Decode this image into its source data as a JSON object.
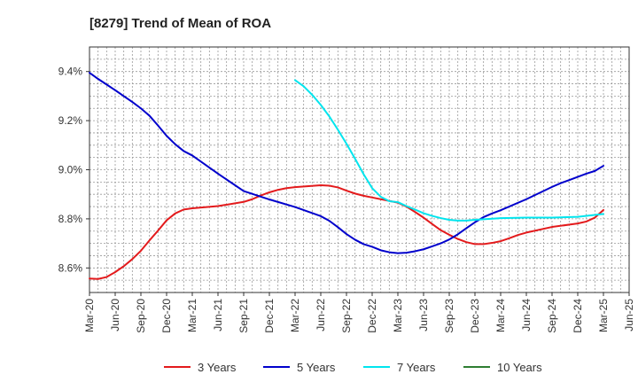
{
  "chart_data": {
    "type": "line",
    "title": "[8279]  Trend of Mean of ROA",
    "xlabel": "",
    "ylabel": "",
    "x_ticks": [
      "Mar-20",
      "Jun-20",
      "Sep-20",
      "Dec-20",
      "Mar-21",
      "Jun-21",
      "Sep-21",
      "Dec-21",
      "Mar-22",
      "Jun-22",
      "Sep-22",
      "Dec-22",
      "Mar-23",
      "Jun-23",
      "Sep-23",
      "Dec-23",
      "Mar-24",
      "Jun-24",
      "Sep-24",
      "Dec-24",
      "Mar-25",
      "Jun-25"
    ],
    "y_ticks": [
      8.6,
      8.8,
      9.0,
      9.2,
      9.4
    ],
    "y_tick_labels": [
      "8.6%",
      "8.8%",
      "9.0%",
      "9.2%",
      "9.4%"
    ],
    "ylim": [
      8.5,
      9.5
    ],
    "grid": true,
    "legend_position": "bottom",
    "series": [
      {
        "name": "3 Years",
        "color": "#e31a1c",
        "x": [
          "Mar-20",
          "Apr-20",
          "May-20",
          "Jun-20",
          "Jul-20",
          "Aug-20",
          "Sep-20",
          "Oct-20",
          "Nov-20",
          "Dec-20",
          "Jan-21",
          "Feb-21",
          "Mar-21",
          "Jun-21",
          "Sep-21",
          "Oct-21",
          "Nov-21",
          "Dec-21",
          "Jan-22",
          "Feb-22",
          "Mar-22",
          "Jun-22",
          "Jul-22",
          "Aug-22",
          "Sep-22",
          "Oct-22",
          "Nov-22",
          "Dec-22",
          "Mar-23",
          "Apr-23",
          "May-23",
          "Jun-23",
          "Jul-23",
          "Aug-23",
          "Sep-23",
          "Oct-23",
          "Nov-23",
          "Dec-23",
          "Jan-24",
          "Feb-24",
          "Mar-24",
          "Apr-24",
          "May-24",
          "Jun-24",
          "Sep-24",
          "Dec-24",
          "Jan-25",
          "Feb-25",
          "Mar-25"
        ],
        "y": [
          8.557,
          8.555,
          8.563,
          8.583,
          8.607,
          8.636,
          8.67,
          8.712,
          8.752,
          8.794,
          8.822,
          8.838,
          8.843,
          8.852,
          8.869,
          8.88,
          8.895,
          8.908,
          8.918,
          8.925,
          8.929,
          8.937,
          8.935,
          8.928,
          8.915,
          8.903,
          8.894,
          8.887,
          8.866,
          8.85,
          8.828,
          8.805,
          8.779,
          8.754,
          8.735,
          8.718,
          8.705,
          8.697,
          8.697,
          8.702,
          8.709,
          8.721,
          8.734,
          8.744,
          8.767,
          8.781,
          8.789,
          8.805,
          8.836
        ]
      },
      {
        "name": "5 Years",
        "color": "#0000cc",
        "x": [
          "Mar-20",
          "Apr-20",
          "May-20",
          "Jun-20",
          "Jul-20",
          "Aug-20",
          "Sep-20",
          "Oct-20",
          "Nov-20",
          "Dec-20",
          "Jan-21",
          "Feb-21",
          "Mar-21",
          "Jun-21",
          "Sep-21",
          "Dec-21",
          "Mar-22",
          "Jun-22",
          "Jul-22",
          "Aug-22",
          "Sep-22",
          "Oct-22",
          "Nov-22",
          "Dec-22",
          "Jan-23",
          "Feb-23",
          "Mar-23",
          "Apr-23",
          "May-23",
          "Jun-23",
          "Jul-23",
          "Aug-23",
          "Sep-23",
          "Oct-23",
          "Nov-23",
          "Dec-23",
          "Jan-24",
          "Feb-24",
          "Mar-24",
          "Jun-24",
          "Sep-24",
          "Oct-24",
          "Nov-24",
          "Dec-24",
          "Jan-25",
          "Feb-25",
          "Mar-25"
        ],
        "y": [
          9.395,
          9.37,
          9.347,
          9.324,
          9.3,
          9.276,
          9.25,
          9.22,
          9.18,
          9.138,
          9.104,
          9.076,
          9.058,
          8.984,
          8.913,
          8.879,
          8.848,
          8.811,
          8.792,
          8.766,
          8.738,
          8.715,
          8.697,
          8.686,
          8.672,
          8.664,
          8.66,
          8.662,
          8.668,
          8.676,
          8.688,
          8.7,
          8.716,
          8.737,
          8.762,
          8.786,
          8.807,
          8.822,
          8.835,
          8.88,
          8.93,
          8.945,
          8.958,
          8.971,
          8.984,
          8.995,
          9.016
        ]
      },
      {
        "name": "7 Years",
        "color": "#00e5ee",
        "x": [
          "Mar-22",
          "Apr-22",
          "May-22",
          "Jun-22",
          "Jul-22",
          "Aug-22",
          "Sep-22",
          "Oct-22",
          "Nov-22",
          "Dec-22",
          "Jan-23",
          "Feb-23",
          "Mar-23",
          "Apr-23",
          "May-23",
          "Jun-23",
          "Jul-23",
          "Aug-23",
          "Sep-23",
          "Oct-23",
          "Nov-23",
          "Dec-23",
          "Mar-24",
          "Jun-24",
          "Sep-24",
          "Dec-24",
          "Mar-25"
        ],
        "y": [
          9.365,
          9.34,
          9.305,
          9.264,
          9.217,
          9.163,
          9.106,
          9.045,
          8.982,
          8.925,
          8.89,
          8.872,
          8.868,
          8.852,
          8.838,
          8.823,
          8.812,
          8.803,
          8.796,
          8.793,
          8.793,
          8.796,
          8.803,
          8.805,
          8.805,
          8.808,
          8.82
        ]
      },
      {
        "name": "10 Years",
        "color": "#2e7d32",
        "x": [],
        "y": []
      }
    ]
  }
}
